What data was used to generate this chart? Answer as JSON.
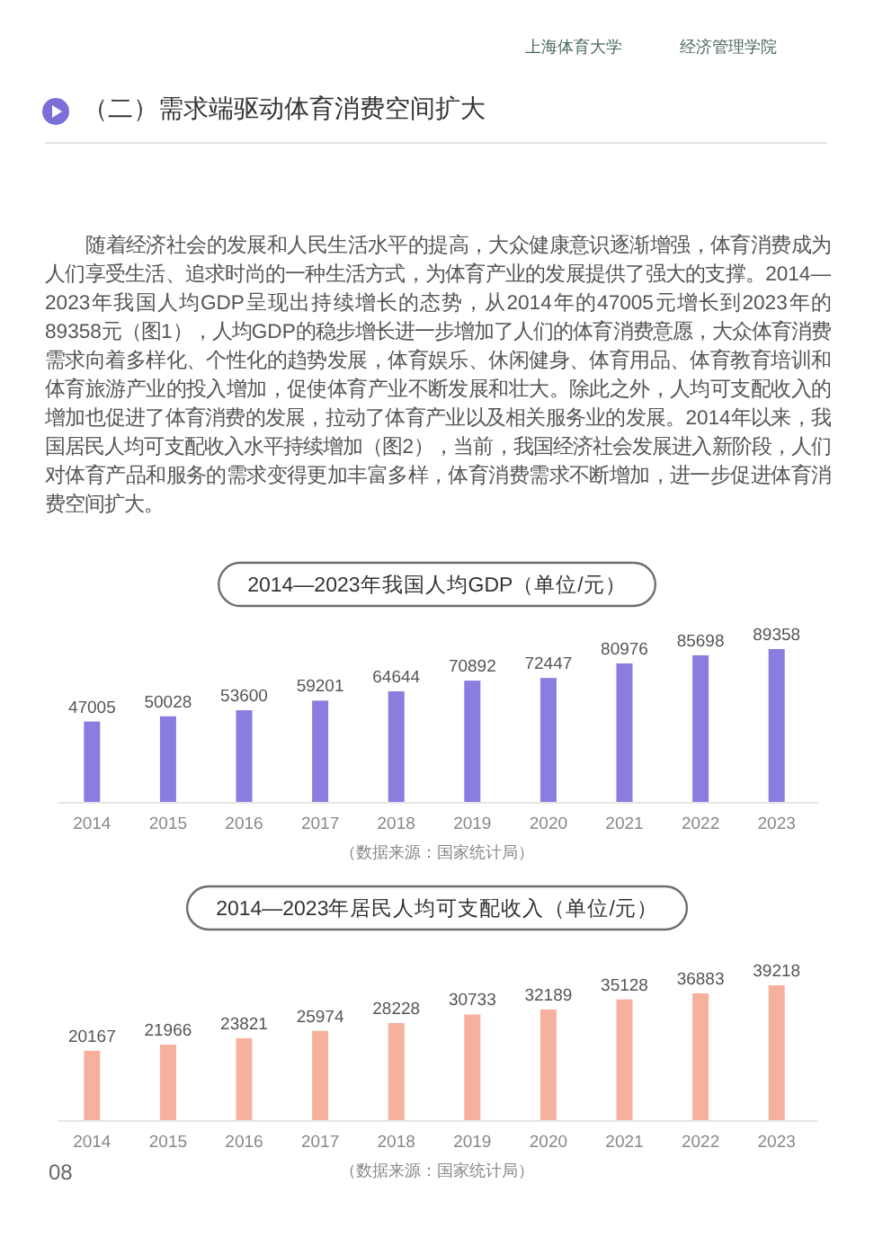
{
  "chart_data": [
    {
      "type": "other",
      "title": "（二）需求端驱动体育消费空间扩大",
      "annotations": [
        "上海体育大学",
        "经济管理学院",
        "随着经济社会的发展和人民生活水平的提高，大众健康意识逐渐增强，体育消费成为人们享受生活、追求时尚的一种生活方式，为体育产业的发展提供了强大的支撑。2014—2023年我国人均GDP呈现出持续增长的态势，从2014年的47005元增长到2023年的89358元（图1），人均GDP的稳步增长进一步增加了人们的体育消费意愿，大众体育消费需求向着多样化、个性化的趋势发展，体育娱乐、休闲健身、体育用品、体育教育培训和体育旅游产业的投入增加，促使体育产业不断发展和壮大。除此之外，人均可支配收入的增加也促进了体育消费的发展，拉动了体育产业以及相关服务业的发展。2014年以来，我国居民人均可支配收入水平持续增加（图2），当前，我国经济社会发展进入新阶段，人们对体育产品和服务的需求变得更加丰富多样，体育消费需求不断增加，进一步促进体育消费空间扩大。"
      ]
    },
    {
      "type": "bar",
      "title": "2014—2023年我国人均GDP（单位/元）",
      "categories": [
        "2014",
        "2015",
        "2016",
        "2017",
        "2018",
        "2019",
        "2020",
        "2021",
        "2022",
        "2023"
      ],
      "values": [
        47005,
        50028,
        53600,
        59201,
        64644,
        70892,
        72447,
        80976,
        85698,
        89358
      ],
      "color": "#8a7de0",
      "data_labels": true,
      "annotations": [
        "（数据来源：国家统计局）"
      ]
    },
    {
      "type": "bar",
      "title": "2014—2023年居民人均可支配收入（单位/元）",
      "categories": [
        "2014",
        "2015",
        "2016",
        "2017",
        "2018",
        "2019",
        "2020",
        "2021",
        "2022",
        "2023"
      ],
      "values": [
        20167,
        21966,
        23821,
        25974,
        28228,
        30733,
        32189,
        35128,
        36883,
        39218
      ],
      "color": "#f5b19e",
      "data_labels": true,
      "annotations": [
        "（数据来源：国家统计局）",
        "08"
      ]
    }
  ]
}
